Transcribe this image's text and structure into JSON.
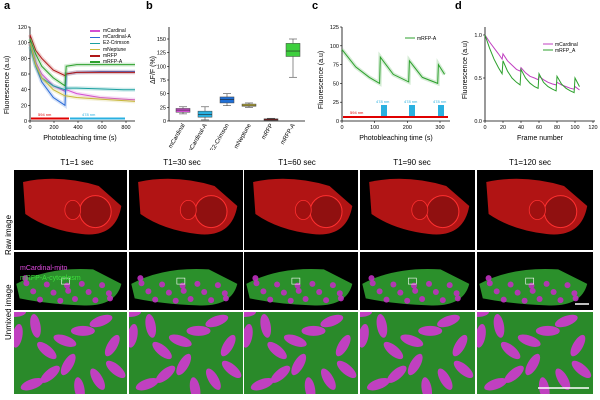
{
  "panels": {
    "a": {
      "label": "a",
      "ylabel": "Fluorescence (a.u)",
      "xlabel": "Photobleaching time (s)",
      "legend": [
        "mCardinal",
        "mCardinal-A",
        "E2-Crimson",
        "mNeptune",
        "mRFP",
        "mRFP-A"
      ],
      "laser_labels": [
        "594 nm",
        "478 nm"
      ],
      "xticks": [
        "0",
        "200",
        "400",
        "600",
        "800"
      ],
      "yticks": [
        "0",
        "20",
        "40",
        "60",
        "80",
        "100",
        "120"
      ]
    },
    "b": {
      "label": "b",
      "ylabel": "ΔF/F (%)",
      "categories": [
        "mCardinal",
        "mCardinal-A",
        "E2-Crimson",
        "mNeptune",
        "mRFP",
        "mRFP-A"
      ],
      "yticks": [
        "0",
        "25",
        "50",
        "75",
        "100",
        "125",
        "150"
      ]
    },
    "c": {
      "label": "c",
      "ylabel": "Fluorescence (a.u)",
      "xlabel": "Photobleaching time (s)",
      "legend": [
        "mRFP-A"
      ],
      "laser_labels": [
        "594 nm",
        "478 nm",
        "478 nm",
        "478 nm"
      ],
      "xticks": [
        "0",
        "100",
        "200",
        "300"
      ],
      "yticks": [
        "0",
        "25",
        "50",
        "75",
        "100",
        "125"
      ]
    },
    "d": {
      "label": "d",
      "ylabel": "Fluorescence (a.u)",
      "xlabel": "Frame number",
      "legend": [
        "mCardinal",
        "mRFP_A"
      ],
      "xticks": [
        "0",
        "20",
        "40",
        "60",
        "80",
        "100",
        "120"
      ],
      "yticks": [
        "0.0",
        "0.5",
        "1.0"
      ]
    }
  },
  "chart_data": [
    {
      "type": "line",
      "panel": "a",
      "xlabel": "Photobleaching time (s)",
      "ylabel": "Fluorescence (a.u)",
      "xlim": [
        0,
        900
      ],
      "ylim": [
        0,
        120
      ],
      "series": [
        {
          "name": "mCardinal",
          "color": "#d24fd2",
          "x": [
            0,
            50,
            100,
            200,
            300,
            310,
            400,
            600,
            800,
            900
          ],
          "y": [
            100,
            75,
            60,
            45,
            38,
            40,
            35,
            30,
            28,
            27
          ]
        },
        {
          "name": "mCardinal-A",
          "color": "#2a6ad6",
          "x": [
            0,
            50,
            100,
            200,
            300,
            310,
            400,
            600,
            800,
            900
          ],
          "y": [
            100,
            70,
            50,
            30,
            20,
            60,
            62,
            63,
            63,
            63
          ]
        },
        {
          "name": "E2-Crimson",
          "color": "#1aa0a0",
          "x": [
            0,
            50,
            100,
            200,
            300,
            310,
            400,
            600,
            800,
            900
          ],
          "y": [
            95,
            70,
            55,
            45,
            40,
            42,
            42,
            41,
            40,
            40
          ]
        },
        {
          "name": "mNeptune",
          "color": "#c8b93a",
          "x": [
            0,
            50,
            100,
            200,
            300,
            310,
            400,
            600,
            800,
            900
          ],
          "y": [
            100,
            72,
            55,
            40,
            32,
            32,
            30,
            28,
            26,
            25
          ]
        },
        {
          "name": "mRFP",
          "color": "#b01818",
          "x": [
            0,
            50,
            100,
            200,
            300,
            310,
            400,
            600,
            800,
            900
          ],
          "y": [
            110,
            90,
            80,
            65,
            58,
            60,
            62,
            62,
            62,
            62
          ]
        },
        {
          "name": "mRFP-A",
          "color": "#2ca02c",
          "x": [
            0,
            50,
            100,
            200,
            300,
            310,
            400,
            600,
            800,
            900
          ],
          "y": [
            105,
            85,
            70,
            55,
            45,
            70,
            72,
            72,
            72,
            72
          ]
        }
      ]
    },
    {
      "type": "box",
      "panel": "b",
      "ylabel": "ΔF/F (%)",
      "ylim": [
        0,
        160
      ],
      "categories": [
        "mCardinal",
        "mCardinal-A",
        "E2-Crimson",
        "mNeptune",
        "mRFP",
        "mRFP-A"
      ],
      "colors": [
        "#d24fd2",
        "#2ab0e0",
        "#1f6fd6",
        "#d8c83a",
        "#c02020",
        "#3ecf3e"
      ],
      "boxes": [
        {
          "min": 13,
          "q1": 16,
          "median": 20,
          "q3": 23,
          "max": 26
        },
        {
          "min": 2,
          "q1": 7,
          "median": 12,
          "q3": 18,
          "max": 26
        },
        {
          "min": 28,
          "q1": 33,
          "median": 39,
          "q3": 44,
          "max": 50
        },
        {
          "min": 25,
          "q1": 27,
          "median": 29,
          "q3": 31,
          "max": 33
        },
        {
          "min": 1,
          "q1": 2,
          "median": 3,
          "q3": 4,
          "max": 5
        },
        {
          "min": 80,
          "q1": 118,
          "median": 128,
          "q3": 142,
          "max": 150
        }
      ]
    },
    {
      "type": "line",
      "panel": "c",
      "xlabel": "Photobleaching time (s)",
      "ylabel": "Fluorescence (a.u)",
      "xlim": [
        0,
        310
      ],
      "ylim": [
        0,
        125
      ],
      "series": [
        {
          "name": "mRFP-A",
          "color": "#2ca02c",
          "x": [
            0,
            40,
            80,
            110,
            112,
            150,
            195,
            197,
            235,
            280,
            282,
            300
          ],
          "y": [
            95,
            72,
            58,
            50,
            85,
            62,
            52,
            80,
            58,
            50,
            75,
            62
          ]
        }
      ]
    },
    {
      "type": "line",
      "panel": "d",
      "xlabel": "Frame number",
      "ylabel": "Fluorescence (a.u)",
      "xlim": [
        0,
        120
      ],
      "ylim": [
        0,
        1.1
      ],
      "series": [
        {
          "name": "mCardinal",
          "color": "#c040c0",
          "x": [
            0,
            5,
            10,
            15,
            19,
            20,
            25,
            30,
            35,
            39,
            40,
            45,
            50,
            55,
            59,
            60,
            65,
            70,
            75,
            79,
            80,
            85,
            90,
            95,
            99,
            100,
            105
          ],
          "y": [
            1.0,
            0.92,
            0.85,
            0.78,
            0.72,
            0.78,
            0.7,
            0.65,
            0.6,
            0.58,
            0.62,
            0.56,
            0.52,
            0.5,
            0.48,
            0.52,
            0.48,
            0.45,
            0.43,
            0.42,
            0.45,
            0.42,
            0.4,
            0.38,
            0.37,
            0.4,
            0.36
          ]
        },
        {
          "name": "mRFP_A",
          "color": "#2ca02c",
          "x": [
            0,
            5,
            10,
            15,
            19,
            20,
            25,
            30,
            35,
            39,
            40,
            45,
            50,
            55,
            59,
            60,
            65,
            70,
            75,
            79,
            80,
            85,
            90,
            95,
            99,
            100,
            105
          ],
          "y": [
            1.0,
            0.85,
            0.72,
            0.62,
            0.55,
            0.7,
            0.58,
            0.5,
            0.45,
            0.42,
            0.6,
            0.5,
            0.44,
            0.4,
            0.38,
            0.55,
            0.45,
            0.4,
            0.37,
            0.35,
            0.52,
            0.43,
            0.38,
            0.35,
            0.33,
            0.5,
            0.4
          ]
        }
      ]
    }
  ],
  "images": {
    "time_labels": [
      "T1=1 sec",
      "T1=30 sec",
      "T1=60 sec",
      "T1=90 sec",
      "T1=120 sec"
    ],
    "row_labels": [
      "Raw image",
      "Unmixed image"
    ],
    "unmixed_legend": [
      "mCardinal-mito",
      "mRFP-A-cytoplasm"
    ]
  }
}
